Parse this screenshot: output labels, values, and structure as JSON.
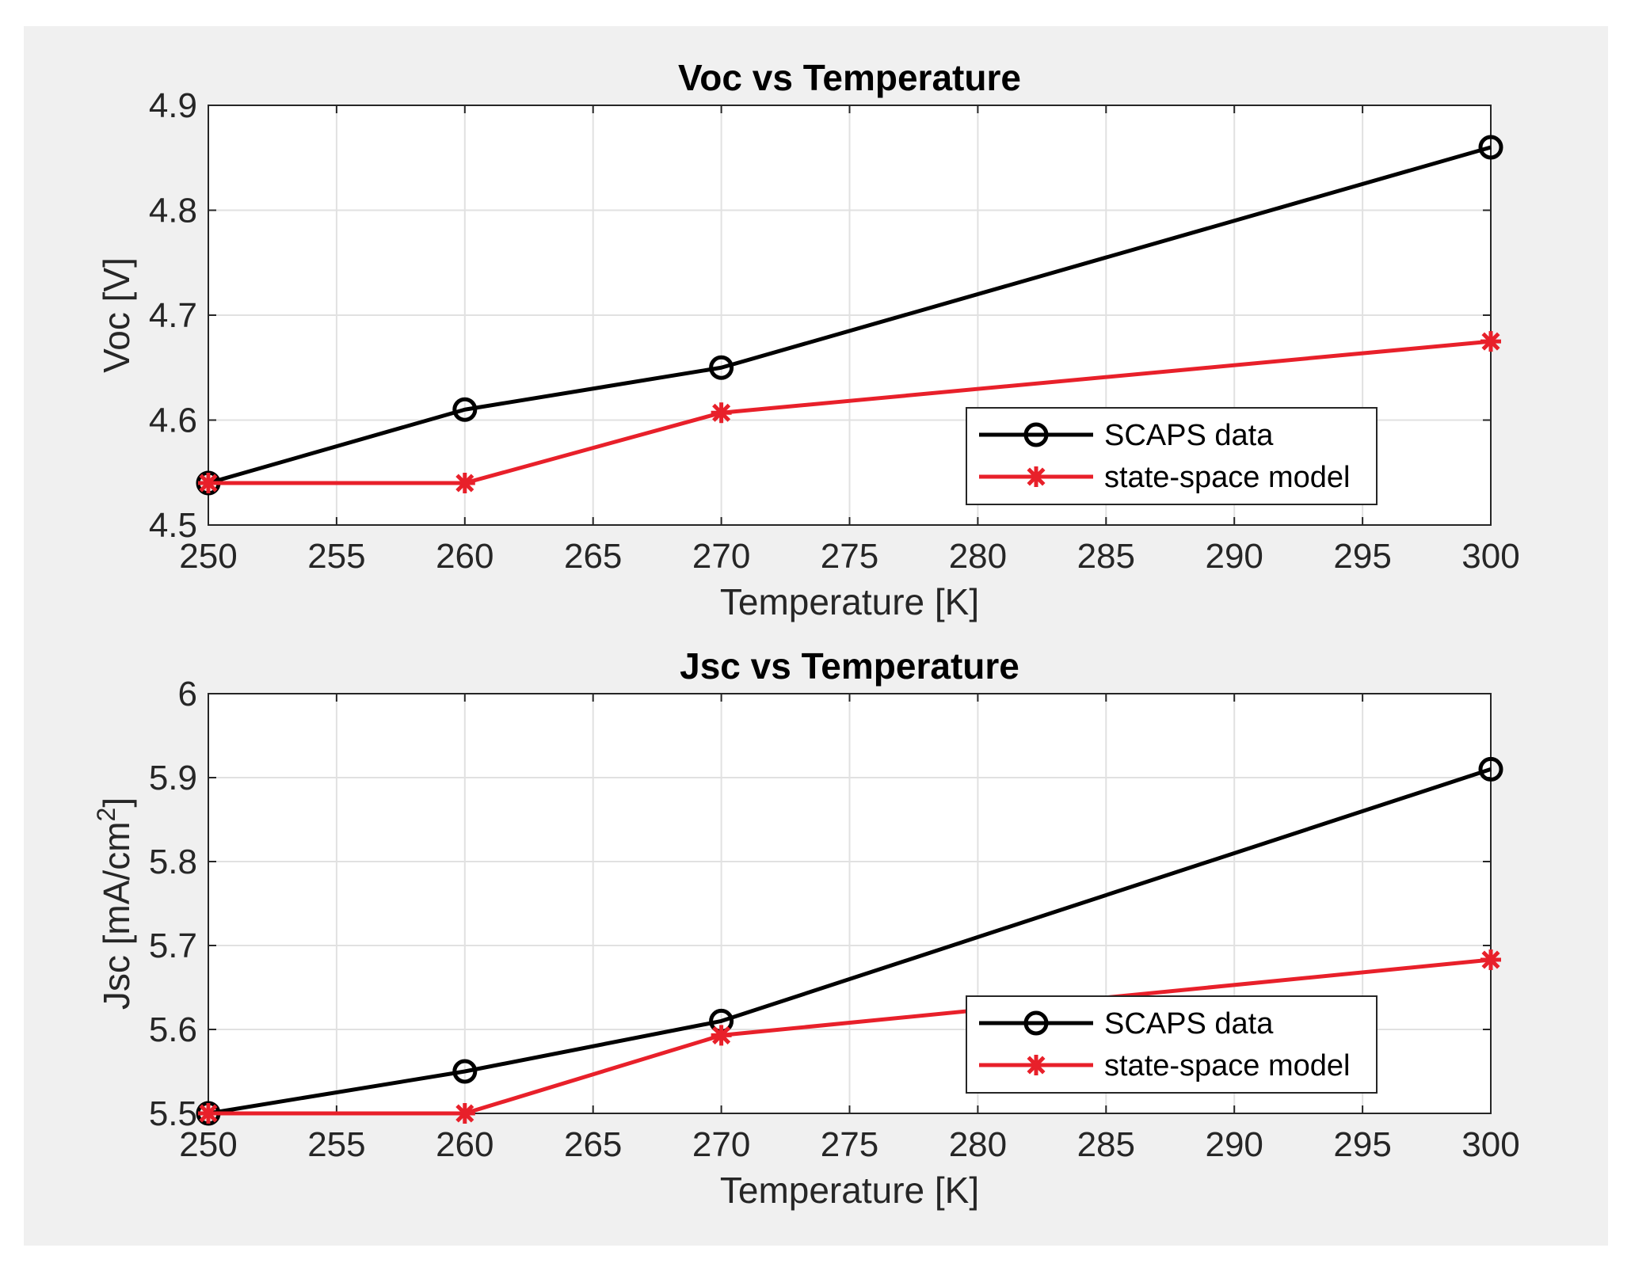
{
  "colors": {
    "background": "#f0f0f0",
    "axes_face": "#ffffff",
    "grid": "#e1e1e1",
    "axis_line": "#262626",
    "scaps": "#000000",
    "model": "#e8202a"
  },
  "chart_data": [
    {
      "type": "line",
      "title": "Voc vs Temperature",
      "xlabel": "Temperature [K]",
      "ylabel": "Voc [V]",
      "xlim": [
        250,
        300
      ],
      "ylim": [
        4.5,
        4.9
      ],
      "xticks": [
        250,
        255,
        260,
        265,
        270,
        275,
        280,
        285,
        290,
        295,
        300
      ],
      "yticks": [
        4.5,
        4.6,
        4.7,
        4.8,
        4.9
      ],
      "ytick_labels": [
        "4.5",
        "4.6",
        "4.7",
        "4.8",
        "4.9"
      ],
      "grid": true,
      "legend_position": "bottom-right",
      "series": [
        {
          "name": "SCAPS data",
          "marker": "circle",
          "color": "#000000",
          "x": [
            250,
            260,
            270,
            300
          ],
          "y": [
            4.54,
            4.61,
            4.65,
            4.86
          ]
        },
        {
          "name": "state-space model",
          "marker": "asterisk",
          "color": "#e8202a",
          "x": [
            250,
            260,
            270,
            300
          ],
          "y": [
            4.54,
            4.54,
            4.607,
            4.675
          ]
        }
      ]
    },
    {
      "type": "line",
      "title": "Jsc vs Temperature",
      "xlabel": "Temperature [K]",
      "ylabel": "Jsc [mA/cm",
      "ylabel_superscript": "2",
      "ylabel_suffix": "]",
      "xlim": [
        250,
        300
      ],
      "ylim": [
        5.5,
        6.0
      ],
      "xticks": [
        250,
        255,
        260,
        265,
        270,
        275,
        280,
        285,
        290,
        295,
        300
      ],
      "yticks": [
        5.5,
        5.6,
        5.7,
        5.8,
        5.9,
        6.0
      ],
      "ytick_labels": [
        "5.5",
        "5.6",
        "5.7",
        "5.8",
        "5.9",
        "6"
      ],
      "grid": true,
      "legend_position": "bottom-right",
      "series": [
        {
          "name": "SCAPS data",
          "marker": "circle",
          "color": "#000000",
          "x": [
            250,
            260,
            270,
            300
          ],
          "y": [
            5.5,
            5.55,
            5.61,
            5.91
          ]
        },
        {
          "name": "state-space model",
          "marker": "asterisk",
          "color": "#e8202a",
          "x": [
            250,
            260,
            270,
            300
          ],
          "y": [
            5.5,
            5.5,
            5.593,
            5.683
          ]
        }
      ]
    }
  ]
}
